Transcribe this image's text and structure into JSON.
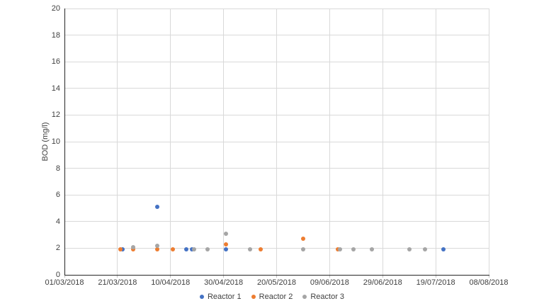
{
  "chart_data": {
    "type": "scatter",
    "title": "",
    "xlabel": "",
    "ylabel": "BOD (mg/l)",
    "ylim": [
      0,
      20
    ],
    "ytick_step": 2,
    "xtick_labels": [
      "01/03/2018",
      "21/03/2018",
      "10/04/2018",
      "30/04/2018",
      "20/05/2018",
      "09/06/2018",
      "29/06/2018",
      "19/07/2018",
      "08/08/2018"
    ],
    "xlim_days": [
      0,
      160
    ],
    "xtick_step_days": 20,
    "x_base_date": "01/03/2018",
    "grid": true,
    "legend_position": "bottom",
    "colors": {
      "gridline": "#d9d9d9",
      "axis": "#262626",
      "text": "#404040",
      "background": "#ffffff"
    },
    "series": [
      {
        "name": "Reactor 1",
        "color": "#4472C4",
        "points": [
          {
            "date": "23/03/2018",
            "value": 1.9
          },
          {
            "date": "05/04/2018",
            "value": 5.1
          },
          {
            "date": "16/04/2018",
            "value": 1.9
          },
          {
            "date": "18/04/2018",
            "value": 1.9
          },
          {
            "date": "01/05/2018",
            "value": 1.9
          },
          {
            "date": "22/07/2018",
            "value": 1.9
          }
        ]
      },
      {
        "name": "Reactor 2",
        "color": "#ED7D31",
        "points": [
          {
            "date": "22/03/2018",
            "value": 1.9
          },
          {
            "date": "27/03/2018",
            "value": 1.9
          },
          {
            "date": "05/04/2018",
            "value": 1.9
          },
          {
            "date": "11/04/2018",
            "value": 1.9
          },
          {
            "date": "01/05/2018",
            "value": 2.3
          },
          {
            "date": "14/05/2018",
            "value": 1.9
          },
          {
            "date": "30/05/2018",
            "value": 2.7
          },
          {
            "date": "12/06/2018",
            "value": 1.9
          }
        ]
      },
      {
        "name": "Reactor 3",
        "color": "#A5A5A5",
        "points": [
          {
            "date": "27/03/2018",
            "value": 2.1
          },
          {
            "date": "05/04/2018",
            "value": 2.2
          },
          {
            "date": "19/04/2018",
            "value": 1.9
          },
          {
            "date": "24/04/2018",
            "value": 1.9
          },
          {
            "date": "01/05/2018",
            "value": 3.1
          },
          {
            "date": "10/05/2018",
            "value": 1.9
          },
          {
            "date": "30/05/2018",
            "value": 1.9
          },
          {
            "date": "13/06/2018",
            "value": 1.9
          },
          {
            "date": "18/06/2018",
            "value": 1.9
          },
          {
            "date": "25/06/2018",
            "value": 1.9
          },
          {
            "date": "09/07/2018",
            "value": 1.9
          },
          {
            "date": "15/07/2018",
            "value": 1.9
          }
        ]
      }
    ]
  }
}
